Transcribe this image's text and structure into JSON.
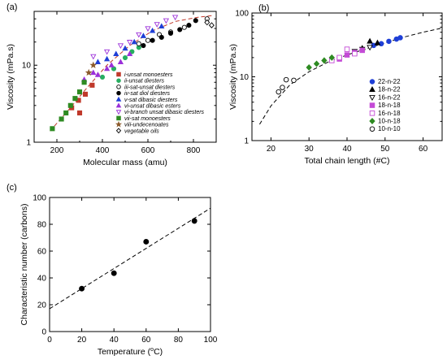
{
  "chart_data": [
    {
      "panel": "(a)",
      "type": "scatter",
      "xlabel": "Molecular mass (amu)",
      "ylabel": "Viscosity (mPa.s)",
      "xlim": [
        100,
        900
      ],
      "ylim": [
        1,
        50
      ],
      "yscale": "log",
      "xticks": [
        200,
        400,
        600,
        800
      ],
      "yticks": [
        {
          "v": 1,
          "label": "1"
        },
        {
          "v": 10,
          "label": "10"
        }
      ],
      "legend_position": "lower-right",
      "fit_line": [
        [
          170,
          1.4
        ],
        [
          250,
          2.6
        ],
        [
          330,
          5
        ],
        [
          420,
          10
        ],
        [
          520,
          18
        ],
        [
          620,
          28
        ],
        [
          720,
          37
        ],
        [
          820,
          42
        ],
        [
          880,
          44
        ]
      ],
      "series": [
        {
          "name": "i-unsat monoesters",
          "marker": "square",
          "color": "#c0392b",
          "filled": true,
          "points": [
            [
              265,
              2.8
            ],
            [
              295,
              3.5
            ],
            [
              300,
              2.4
            ],
            [
              325,
              4.2
            ],
            [
              355,
              5.5
            ]
          ]
        },
        {
          "name": "ii-unsat diesters",
          "marker": "circle",
          "color": "#27ae60",
          "filled": true,
          "points": [
            [
              400,
              7
            ],
            [
              450,
              9
            ],
            [
              500,
              12.5
            ],
            [
              530,
              15
            ],
            [
              560,
              17
            ]
          ]
        },
        {
          "name": "iii-sat-unsat diesters",
          "marker": "circle",
          "color": "#000000",
          "filled": false,
          "points": [
            [
              560,
              19
            ],
            [
              600,
              21
            ],
            [
              650,
              25
            ],
            [
              700,
              27
            ],
            [
              760,
              31
            ],
            [
              860,
              40
            ]
          ]
        },
        {
          "name": "iv-sat diol diesters",
          "marker": "circle",
          "color": "#000000",
          "filled": true,
          "points": [
            [
              580,
              18
            ],
            [
              620,
              21
            ],
            [
              660,
              23
            ],
            [
              700,
              26
            ],
            [
              740,
              29
            ],
            [
              780,
              33
            ],
            [
              810,
              38
            ]
          ]
        },
        {
          "name": "v-sat dibasic diesters",
          "marker": "triangle-up",
          "color": "#1f3fd6",
          "filled": true,
          "points": [
            [
              380,
              11
            ],
            [
              420,
              12
            ],
            [
              460,
              14
            ],
            [
              500,
              16.5
            ],
            [
              540,
              20
            ],
            [
              580,
              24
            ],
            [
              620,
              28
            ],
            [
              660,
              32
            ]
          ]
        },
        {
          "name": "vi-unsat dibasic esters",
          "marker": "triangle-up",
          "color": "#9b30d9",
          "filled": true,
          "points": [
            [
              320,
              6.5
            ],
            [
              360,
              8
            ],
            [
              380,
              7.5
            ],
            [
              420,
              9
            ],
            [
              440,
              10
            ],
            [
              480,
              11
            ],
            [
              520,
              14
            ]
          ]
        },
        {
          "name": "vi-branch unsat dibasic diesters",
          "marker": "triangle-down",
          "color": "#9b30d9",
          "filled": false,
          "points": [
            [
              360,
              13
            ],
            [
              420,
              15
            ],
            [
              480,
              18
            ],
            [
              520,
              20
            ],
            [
              560,
              25
            ],
            [
              600,
              30
            ],
            [
              640,
              34
            ],
            [
              680,
              38
            ],
            [
              720,
              42
            ]
          ]
        },
        {
          "name": "vii-sat monoesters",
          "marker": "square",
          "color": "#2e8b22",
          "filled": true,
          "points": [
            [
              180,
              1.5
            ],
            [
              220,
              2
            ],
            [
              240,
              2.4
            ],
            [
              260,
              3
            ],
            [
              280,
              3.7
            ],
            [
              300,
              4.5
            ],
            [
              320,
              6
            ]
          ]
        },
        {
          "name": "viii-undecenoates",
          "marker": "star",
          "color": "#8b5a2b",
          "filled": true,
          "points": [
            [
              340,
              8
            ],
            [
              360,
              10
            ]
          ]
        },
        {
          "name": "vegetable oils",
          "marker": "diamond",
          "color": "#000000",
          "filled": false,
          "points": [
            [
              860,
              36
            ],
            [
              880,
              33
            ]
          ]
        }
      ]
    },
    {
      "panel": "(b)",
      "type": "scatter",
      "xlabel": "Total chain length (#C)",
      "ylabel": "Viscosity (mPa.s)",
      "xlim": [
        15,
        65
      ],
      "ylim": [
        1,
        100
      ],
      "yscale": "log",
      "xticks": [
        20,
        30,
        40,
        50,
        60
      ],
      "yticks": [
        {
          "v": 1,
          "label": "1"
        },
        {
          "v": 10,
          "label": "10"
        },
        {
          "v": 100,
          "label": "100"
        }
      ],
      "legend_position": "lower-right",
      "fit_line": [
        [
          17,
          1.8
        ],
        [
          20,
          3.5
        ],
        [
          25,
          7.5
        ],
        [
          30,
          12
        ],
        [
          35,
          17
        ],
        [
          40,
          22
        ],
        [
          45,
          27.5
        ],
        [
          50,
          34
        ],
        [
          55,
          42
        ],
        [
          60,
          50
        ],
        [
          65,
          58
        ]
      ],
      "series": [
        {
          "name": "22-n-22",
          "marker": "circle",
          "color": "#1f3fd6",
          "filled": true,
          "points": [
            [
              47,
              31
            ],
            [
              49,
              33
            ],
            [
              51,
              36
            ],
            [
              53,
              39
            ],
            [
              54,
              41
            ]
          ]
        },
        {
          "name": "18-n-22",
          "marker": "triangle-up",
          "color": "#000000",
          "filled": true,
          "points": [
            [
              44,
              28
            ],
            [
              46,
              36
            ],
            [
              48,
              34
            ]
          ]
        },
        {
          "name": "16-n-22",
          "marker": "triangle-down",
          "color": "#000000",
          "filled": false,
          "points": [
            [
              42,
              25
            ],
            [
              44,
              27
            ],
            [
              46,
              29
            ]
          ]
        },
        {
          "name": "18-n-18",
          "marker": "square",
          "color": "#c44bd6",
          "filled": true,
          "points": [
            [
              38,
              19
            ],
            [
              40,
              22
            ],
            [
              42,
              24
            ],
            [
              44,
              26
            ]
          ]
        },
        {
          "name": "16-n-18",
          "marker": "square",
          "color": "#c44bd6",
          "filled": false,
          "points": [
            [
              36,
              18
            ],
            [
              38,
              20
            ],
            [
              40,
              27
            ],
            [
              42,
              23
            ]
          ]
        },
        {
          "name": "10-n-18",
          "marker": "diamond",
          "color": "#2e8b22",
          "filled": true,
          "points": [
            [
              30,
              14
            ],
            [
              32,
              16
            ],
            [
              34,
              18
            ],
            [
              36,
              20
            ]
          ]
        },
        {
          "name": "10-n-10",
          "marker": "circle",
          "color": "#000000",
          "filled": false,
          "points": [
            [
              22,
              5.8
            ],
            [
              23,
              6.8
            ],
            [
              24,
              9
            ],
            [
              26,
              8.8
            ]
          ]
        }
      ]
    },
    {
      "panel": "(c)",
      "type": "scatter",
      "xlabel": "Temperature (",
      "xlabel_sup": "o",
      "xlabel_tail": "C)",
      "ylabel": "Characteristic number (carbons)",
      "xlim": [
        0,
        100
      ],
      "ylim": [
        0,
        100
      ],
      "xticks": [
        0,
        20,
        40,
        60,
        80,
        100
      ],
      "yticks": [
        {
          "v": 0,
          "label": "0"
        },
        {
          "v": 20,
          "label": "20"
        },
        {
          "v": 40,
          "label": "40"
        },
        {
          "v": 60,
          "label": "60"
        },
        {
          "v": 80,
          "label": "80"
        },
        {
          "v": 100,
          "label": "100"
        }
      ],
      "fit_line": [
        [
          0,
          17
        ],
        [
          100,
          92
        ]
      ],
      "series": [
        {
          "name": "",
          "marker": "circle",
          "color": "#000000",
          "filled": true,
          "points": [
            [
              20,
              32
            ],
            [
              40,
              43.5
            ],
            [
              60,
              67
            ],
            [
              90,
              82.5
            ]
          ]
        }
      ]
    }
  ]
}
